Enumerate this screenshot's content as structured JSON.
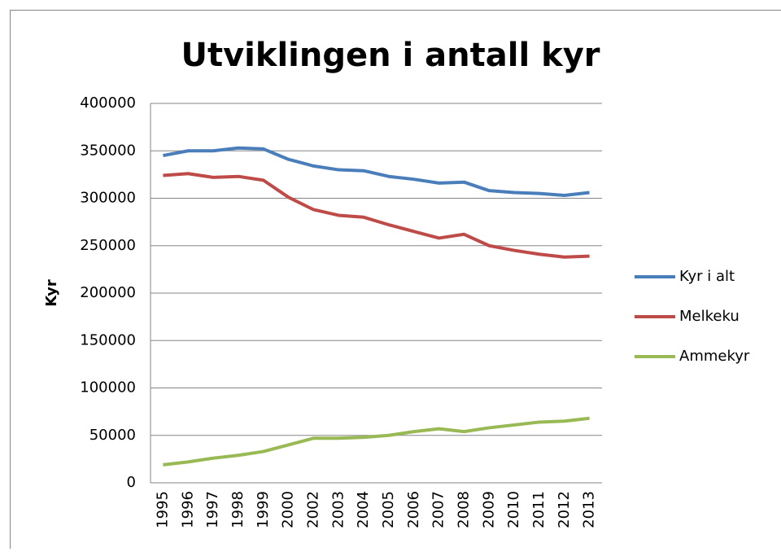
{
  "chart_data": {
    "type": "line",
    "title": "Utviklingen i antall kyr",
    "y_label": "Kyr",
    "categories": [
      "1995",
      "1996",
      "1997",
      "1998",
      "1999",
      "2000",
      "2002",
      "2003",
      "2004",
      "2005",
      "2006",
      "2007",
      "2008",
      "2009",
      "2010",
      "2011",
      "2012",
      "2013"
    ],
    "series": [
      {
        "name": "Kyr i alt",
        "color": "#4a7ebb",
        "values": [
          345000,
          350000,
          350000,
          353000,
          352000,
          341000,
          334000,
          330000,
          329000,
          323000,
          320000,
          316000,
          317000,
          308000,
          306000,
          305000,
          303000,
          306000
        ]
      },
      {
        "name": "Melkeku",
        "color": "#be4b48",
        "values": [
          324000,
          326000,
          322000,
          323000,
          319000,
          301000,
          288000,
          282000,
          280000,
          272000,
          265000,
          258000,
          262000,
          250000,
          245000,
          241000,
          238000,
          239000
        ]
      },
      {
        "name": "Ammekyr",
        "color": "#98b954",
        "values": [
          19000,
          22000,
          26000,
          29000,
          33000,
          40000,
          47000,
          47000,
          48000,
          50000,
          54000,
          57000,
          54000,
          58000,
          61000,
          64000,
          65000,
          68000
        ]
      }
    ],
    "ylim": [
      0,
      400000
    ],
    "yticks": [
      0,
      50000,
      100000,
      150000,
      200000,
      250000,
      300000,
      350000,
      400000
    ],
    "grid": true,
    "legend": "right"
  }
}
